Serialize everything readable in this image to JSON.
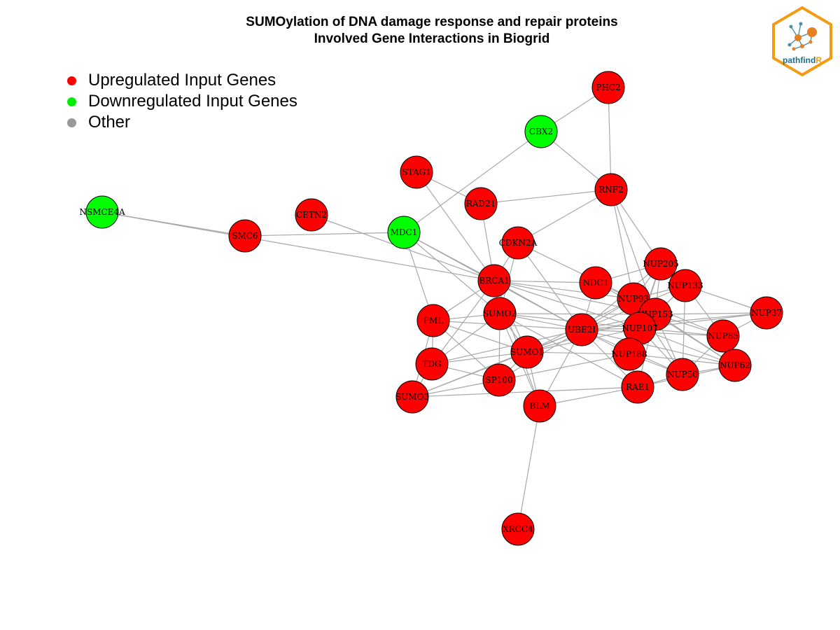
{
  "header": {
    "title_line1": "SUMOylation of DNA damage response and repair proteins",
    "title_line2": "Involved Gene Interactions in Biogrid"
  },
  "legend": {
    "items": [
      {
        "label": "Upregulated Input Genes",
        "color": "#FF0000"
      },
      {
        "label": "Downregulated Input Genes",
        "color": "#00EE00"
      },
      {
        "label": "Other",
        "color": "#999999"
      }
    ]
  },
  "logo": {
    "text_main": "pathfind",
    "text_accent": "R",
    "border_color": "#F39C12",
    "text_color": "#1F6E8C"
  },
  "colors": {
    "up": "#FF0000",
    "down": "#00FF00",
    "edge": "#A8A8A8"
  },
  "network": {
    "nodes": [
      {
        "id": "PHC2",
        "type": "up"
      },
      {
        "id": "CBX2",
        "type": "down"
      },
      {
        "id": "STAG1",
        "type": "up"
      },
      {
        "id": "RNF2",
        "type": "up"
      },
      {
        "id": "RAD21",
        "type": "up"
      },
      {
        "id": "NSMCE4A",
        "type": "down"
      },
      {
        "id": "CETN2",
        "type": "up"
      },
      {
        "id": "MDC1",
        "type": "down"
      },
      {
        "id": "SMC6",
        "type": "up"
      },
      {
        "id": "CDKN2A",
        "type": "up"
      },
      {
        "id": "NUP205",
        "type": "up"
      },
      {
        "id": "BRCA1",
        "type": "up"
      },
      {
        "id": "NDC1",
        "type": "up"
      },
      {
        "id": "NUP133",
        "type": "up"
      },
      {
        "id": "NUP93",
        "type": "up"
      },
      {
        "id": "NUP37",
        "type": "up"
      },
      {
        "id": "NUP153",
        "type": "up"
      },
      {
        "id": "SUMO2",
        "type": "up"
      },
      {
        "id": "PML",
        "type": "up"
      },
      {
        "id": "UBE2I",
        "type": "up"
      },
      {
        "id": "NUP107",
        "type": "up"
      },
      {
        "id": "NUP85",
        "type": "up"
      },
      {
        "id": "SUMO1",
        "type": "up"
      },
      {
        "id": "NUP188",
        "type": "up"
      },
      {
        "id": "TDG",
        "type": "up"
      },
      {
        "id": "NUP62",
        "type": "up"
      },
      {
        "id": "NUP50",
        "type": "up"
      },
      {
        "id": "SP100",
        "type": "up"
      },
      {
        "id": "RAE1",
        "type": "up"
      },
      {
        "id": "SUMO3",
        "type": "up"
      },
      {
        "id": "BLM",
        "type": "up"
      },
      {
        "id": "XRCC4",
        "type": "up"
      }
    ],
    "edges": [
      [
        "PHC2",
        "CBX2"
      ],
      [
        "PHC2",
        "RNF2"
      ],
      [
        "CBX2",
        "RNF2"
      ],
      [
        "CBX2",
        "MDC1"
      ],
      [
        "RNF2",
        "RAD21"
      ],
      [
        "RNF2",
        "CDKN2A"
      ],
      [
        "RNF2",
        "NUP93"
      ],
      [
        "RNF2",
        "NUP205"
      ],
      [
        "RNF2",
        "NUP153"
      ],
      [
        "STAG1",
        "RAD21"
      ],
      [
        "STAG1",
        "BRCA1"
      ],
      [
        "RAD21",
        "BRCA1"
      ],
      [
        "NSMCE4A",
        "SMC6"
      ],
      [
        "NSMCE4A",
        "BRCA1"
      ],
      [
        "SMC6",
        "MDC1"
      ],
      [
        "CETN2",
        "BRCA1"
      ],
      [
        "MDC1",
        "BRCA1"
      ],
      [
        "MDC1",
        "UBE2I"
      ],
      [
        "MDC1",
        "PML"
      ],
      [
        "MDC1",
        "SUMO2"
      ],
      [
        "CDKN2A",
        "BRCA1"
      ],
      [
        "CDKN2A",
        "SUMO2"
      ],
      [
        "CDKN2A",
        "UBE2I"
      ],
      [
        "CDKN2A",
        "NUP93"
      ],
      [
        "BRCA1",
        "UBE2I"
      ],
      [
        "BRCA1",
        "SUMO2"
      ],
      [
        "BRCA1",
        "SUMO1"
      ],
      [
        "BRCA1",
        "PML"
      ],
      [
        "BRCA1",
        "NDC1"
      ],
      [
        "BRCA1",
        "NUP93"
      ],
      [
        "BRCA1",
        "NUP153"
      ],
      [
        "BRCA1",
        "NUP107"
      ],
      [
        "BRCA1",
        "TDG"
      ],
      [
        "BRCA1",
        "BLM"
      ],
      [
        "SUMO2",
        "UBE2I"
      ],
      [
        "SUMO2",
        "PML"
      ],
      [
        "SUMO2",
        "SUMO1"
      ],
      [
        "SUMO2",
        "TDG"
      ],
      [
        "SUMO2",
        "SP100"
      ],
      [
        "SUMO2",
        "BLM"
      ],
      [
        "SUMO2",
        "NUP107"
      ],
      [
        "SUMO2",
        "NUP153"
      ],
      [
        "SUMO2",
        "RAE1"
      ],
      [
        "PML",
        "UBE2I"
      ],
      [
        "PML",
        "SUMO1"
      ],
      [
        "PML",
        "TDG"
      ],
      [
        "PML",
        "SP100"
      ],
      [
        "PML",
        "SUMO3"
      ],
      [
        "UBE2I",
        "SUMO1"
      ],
      [
        "UBE2I",
        "TDG"
      ],
      [
        "UBE2I",
        "SP100"
      ],
      [
        "UBE2I",
        "SUMO3"
      ],
      [
        "UBE2I",
        "BLM"
      ],
      [
        "UBE2I",
        "NUP93"
      ],
      [
        "UBE2I",
        "NUP205"
      ],
      [
        "UBE2I",
        "NUP133"
      ],
      [
        "UBE2I",
        "NUP153"
      ],
      [
        "UBE2I",
        "NUP107"
      ],
      [
        "UBE2I",
        "NUP85"
      ],
      [
        "UBE2I",
        "NUP188"
      ],
      [
        "UBE2I",
        "NUP62"
      ],
      [
        "UBE2I",
        "NUP50"
      ],
      [
        "UBE2I",
        "RAE1"
      ],
      [
        "UBE2I",
        "NUP37"
      ],
      [
        "UBE2I",
        "NDC1"
      ],
      [
        "SUMO1",
        "TDG"
      ],
      [
        "SUMO1",
        "SP100"
      ],
      [
        "SUMO1",
        "SUMO3"
      ],
      [
        "SUMO1",
        "BLM"
      ],
      [
        "SUMO1",
        "NUP153"
      ],
      [
        "SUMO1",
        "NUP107"
      ],
      [
        "SUMO1",
        "NUP93"
      ],
      [
        "SUMO1",
        "NUP188"
      ],
      [
        "TDG",
        "SUMO3"
      ],
      [
        "TDG",
        "SP100"
      ],
      [
        "SP100",
        "SUMO3"
      ],
      [
        "SP100",
        "NUP188"
      ],
      [
        "BLM",
        "XRCC4"
      ],
      [
        "BLM",
        "RAE1"
      ],
      [
        "SUMO3",
        "RAE1"
      ],
      [
        "NDC1",
        "NUP93"
      ],
      [
        "NDC1",
        "NUP153"
      ],
      [
        "NDC1",
        "NUP205"
      ],
      [
        "NUP205",
        "NUP93"
      ],
      [
        "NUP205",
        "NUP153"
      ],
      [
        "NUP205",
        "NUP107"
      ],
      [
        "NUP205",
        "NUP188"
      ],
      [
        "NUP205",
        "NUP133"
      ],
      [
        "NUP133",
        "NUP93"
      ],
      [
        "NUP133",
        "NUP153"
      ],
      [
        "NUP133",
        "NUP107"
      ],
      [
        "NUP133",
        "NUP37"
      ],
      [
        "NUP133",
        "NUP85"
      ],
      [
        "NUP133",
        "NUP50"
      ],
      [
        "NUP93",
        "NUP153"
      ],
      [
        "NUP93",
        "NUP107"
      ],
      [
        "NUP93",
        "NUP188"
      ],
      [
        "NUP93",
        "NUP62"
      ],
      [
        "NUP93",
        "NUP85"
      ],
      [
        "NUP93",
        "NUP50"
      ],
      [
        "NUP153",
        "NUP107"
      ],
      [
        "NUP153",
        "NUP85"
      ],
      [
        "NUP153",
        "NUP50"
      ],
      [
        "NUP153",
        "NUP62"
      ],
      [
        "NUP153",
        "RAE1"
      ],
      [
        "NUP153",
        "NUP37"
      ],
      [
        "NUP107",
        "NUP188"
      ],
      [
        "NUP107",
        "NUP85"
      ],
      [
        "NUP107",
        "NUP37"
      ],
      [
        "NUP107",
        "NUP62"
      ],
      [
        "NUP107",
        "NUP50"
      ],
      [
        "NUP85",
        "NUP37"
      ],
      [
        "NUP85",
        "NUP62"
      ],
      [
        "NUP85",
        "NUP50"
      ],
      [
        "NUP188",
        "NUP50"
      ],
      [
        "NUP188",
        "NUP62"
      ],
      [
        "NUP188",
        "RAE1"
      ],
      [
        "NUP50",
        "NUP62"
      ],
      [
        "RAE1",
        "NUP50"
      ],
      [
        "RAE1",
        "NUP62"
      ]
    ]
  }
}
